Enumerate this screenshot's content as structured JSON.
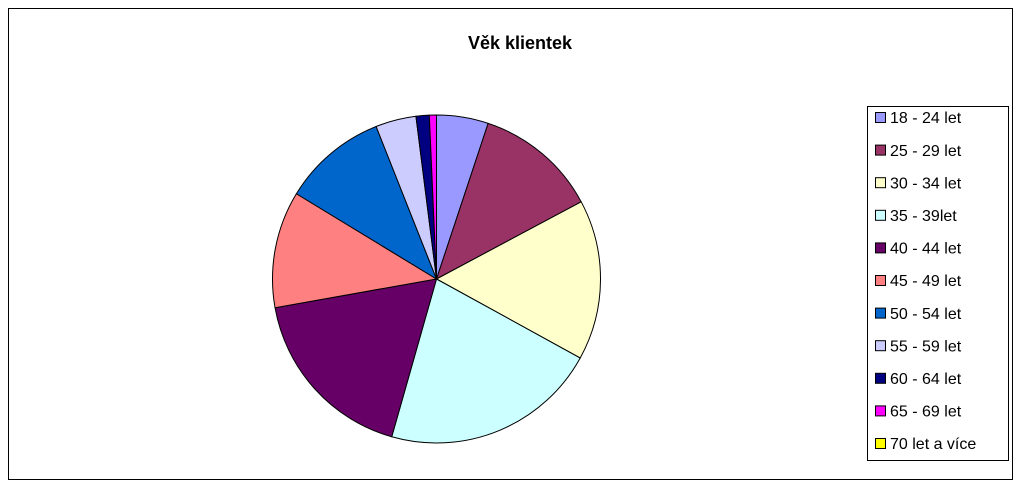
{
  "chart_data": {
    "type": "pie",
    "title": "Věk klientek",
    "categories": [
      "18 - 24 let",
      "25 - 29 let",
      "30 - 34 let",
      "35 - 39let",
      "40 - 44 let",
      "45 - 49 let",
      "50 - 54 let",
      "55 - 59 let",
      "60 - 64 let",
      "65 - 69 let",
      "70 let a více"
    ],
    "values": [
      5.1,
      12.1,
      15.8,
      21.4,
      17.8,
      11.5,
      10.3,
      4.0,
      1.3,
      0.7,
      0
    ],
    "colors": [
      "#9999ff",
      "#993366",
      "#ffffcc",
      "#ccffff",
      "#660066",
      "#ff8080",
      "#0066cc",
      "#ccccff",
      "#000080",
      "#ff00ff",
      "#ffff00"
    ],
    "legend": "right"
  }
}
